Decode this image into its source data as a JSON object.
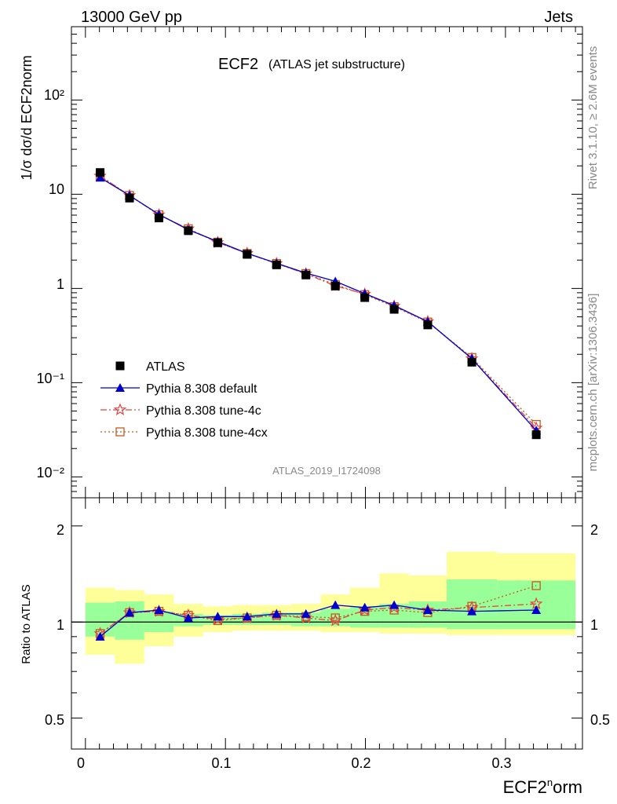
{
  "header": {
    "energy_label": "13000 GeV pp",
    "process_label": "Jets",
    "title": "ECF2",
    "subtitle": "(ATLAS jet substructure)",
    "analysis_id": "ATLAS_2019_I1724098",
    "side_rivet": "Rivet 3.1.10, ≥ 2.6M events",
    "side_mcplots": "mcplots.cern.ch [arXiv:1306.3436]"
  },
  "axes": {
    "xlabel_main": "ECF2",
    "xlabel_sup": "n",
    "xlabel_tail": "orm",
    "ylabel_main": "1/σ dσ/d ECF2norm",
    "ylabel_ratio": "Ratio to ATLAS",
    "x_ticks": [
      "0",
      "0.1",
      "0.2",
      "0.3"
    ],
    "y_main_ticks": [
      "10⁻²",
      "10⁻¹",
      "1",
      "10",
      "10²"
    ],
    "y_ratio_ticks": [
      "0.5",
      "1",
      "2"
    ]
  },
  "legend": [
    {
      "label": "ATLAS",
      "color": "#000000",
      "marker": "square"
    },
    {
      "label": "Pythia 8.308 default",
      "color": "#0000cc",
      "marker": "triangle"
    },
    {
      "label": "Pythia 8.308 tune-4c",
      "color": "#e8413f",
      "marker": "star"
    },
    {
      "label": "Pythia 8.308 tune-4cx",
      "color": "#c25a1f",
      "marker": "open-square"
    }
  ],
  "chart_data": {
    "type": "line",
    "xlim": [
      -0.01,
      0.355
    ],
    "main_ylim": [
      0.006,
      600
    ],
    "main_log": true,
    "ratio_ylim": [
      0.4,
      2.45
    ],
    "ratio_log": true,
    "bin_edges": [
      0.0,
      0.021,
      0.042,
      0.063,
      0.084,
      0.105,
      0.126,
      0.147,
      0.168,
      0.189,
      0.21,
      0.231,
      0.258,
      0.294,
      0.35
    ],
    "x": [
      0.0105,
      0.0315,
      0.0525,
      0.0735,
      0.0945,
      0.1155,
      0.1365,
      0.1575,
      0.1785,
      0.1995,
      0.2205,
      0.2445,
      0.276,
      0.322
    ],
    "series": [
      {
        "name": "ATLAS",
        "values": [
          17.0,
          9.1,
          5.6,
          4.1,
          3.05,
          2.3,
          1.78,
          1.39,
          1.06,
          0.8,
          0.6,
          0.41,
          0.165,
          0.028
        ]
      },
      {
        "name": "Pythia 8.308 default",
        "values": [
          15.0,
          9.7,
          6.1,
          4.2,
          3.15,
          2.36,
          1.85,
          1.46,
          1.19,
          0.88,
          0.66,
          0.445,
          0.18,
          0.031
        ]
      },
      {
        "name": "Pythia 8.308 tune-4c",
        "values": [
          15.6,
          9.7,
          6.05,
          4.3,
          3.07,
          2.36,
          1.84,
          1.43,
          1.07,
          0.87,
          0.65,
          0.445,
          0.18,
          0.033
        ]
      },
      {
        "name": "Pythia 8.308 tune-4cx",
        "values": [
          15.6,
          9.7,
          6.05,
          4.3,
          3.1,
          2.35,
          1.84,
          1.44,
          1.1,
          0.86,
          0.64,
          0.44,
          0.185,
          0.036
        ]
      }
    ],
    "ratio_series": [
      {
        "name": "Pythia 8.308 default",
        "values": [
          0.9,
          1.07,
          1.09,
          1.03,
          1.04,
          1.04,
          1.06,
          1.06,
          1.13,
          1.11,
          1.13,
          1.09,
          1.08,
          1.09
        ]
      },
      {
        "name": "Pythia 8.308 tune-4c",
        "values": [
          0.92,
          1.07,
          1.08,
          1.05,
          1.02,
          1.03,
          1.05,
          1.03,
          1.01,
          1.09,
          1.11,
          1.09,
          1.11,
          1.14
        ]
      },
      {
        "name": "Pythia 8.308 tune-4cx",
        "values": [
          0.92,
          1.07,
          1.08,
          1.05,
          1.01,
          1.03,
          1.05,
          1.04,
          1.03,
          1.08,
          1.09,
          1.07,
          1.12,
          1.3
        ]
      }
    ],
    "band_inner": [
      [
        0.9,
        1.15
      ],
      [
        0.88,
        1.16
      ],
      [
        0.93,
        1.08
      ],
      [
        0.97,
        1.06
      ],
      [
        0.98,
        1.05
      ],
      [
        0.98,
        1.06
      ],
      [
        0.98,
        1.07
      ],
      [
        0.97,
        1.07
      ],
      [
        0.97,
        1.1
      ],
      [
        0.96,
        1.12
      ],
      [
        0.96,
        1.14
      ],
      [
        0.96,
        1.16
      ],
      [
        0.95,
        1.36
      ],
      [
        0.95,
        1.35
      ]
    ],
    "band_outer": [
      [
        0.79,
        1.28
      ],
      [
        0.74,
        1.26
      ],
      [
        0.84,
        1.22
      ],
      [
        0.9,
        1.14
      ],
      [
        0.93,
        1.12
      ],
      [
        0.94,
        1.13
      ],
      [
        0.94,
        1.13
      ],
      [
        0.94,
        1.14
      ],
      [
        0.93,
        1.22
      ],
      [
        0.93,
        1.28
      ],
      [
        0.92,
        1.42
      ],
      [
        0.92,
        1.4
      ],
      [
        0.91,
        1.66
      ],
      [
        0.91,
        1.64
      ]
    ]
  }
}
